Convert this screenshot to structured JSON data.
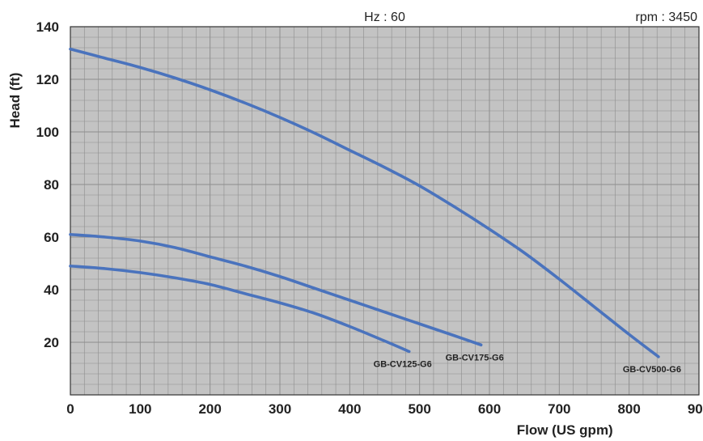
{
  "chart_data": {
    "type": "line",
    "header_left": "Hz : 60",
    "header_right": "rpm : 3450",
    "xlabel": "Flow (US gpm)",
    "ylabel": "Head (ft)",
    "xlim": [
      0,
      900
    ],
    "ylim": [
      0,
      140
    ],
    "x_ticks": [
      "0",
      "100",
      "200",
      "300",
      "400",
      "500",
      "600",
      "700",
      "800",
      "900"
    ],
    "y_ticks": [
      "20",
      "40",
      "60",
      "80",
      "100",
      "120",
      "140"
    ],
    "grid": true,
    "colors": {
      "plot_bg": "#c3c3c3",
      "grid": "#8d8d8d",
      "line": "#4a73bd"
    },
    "series": [
      {
        "name": "GB-CV125-G6",
        "x": [
          0,
          50,
          100,
          150,
          200,
          250,
          300,
          350,
          400,
          450,
          485
        ],
        "y": [
          49,
          48,
          46.5,
          44.5,
          42,
          38.5,
          35,
          31,
          26,
          20.5,
          16.5
        ]
      },
      {
        "name": "GB-CV175-G6",
        "x": [
          0,
          50,
          100,
          150,
          200,
          250,
          300,
          350,
          400,
          450,
          500,
          550,
          588
        ],
        "y": [
          61,
          60,
          58.5,
          56,
          52.5,
          49,
          45,
          40.5,
          36,
          31.5,
          27,
          22.5,
          19
        ]
      },
      {
        "name": "GB-CV500-G6",
        "x": [
          0,
          50,
          100,
          150,
          200,
          250,
          300,
          350,
          400,
          450,
          500,
          550,
          600,
          650,
          700,
          750,
          800,
          842
        ],
        "y": [
          131.5,
          128,
          124.5,
          120.5,
          116,
          111,
          105.5,
          99.5,
          93,
          86.5,
          79.5,
          71.5,
          63,
          54,
          44,
          33.5,
          23,
          14.5
        ]
      }
    ]
  }
}
